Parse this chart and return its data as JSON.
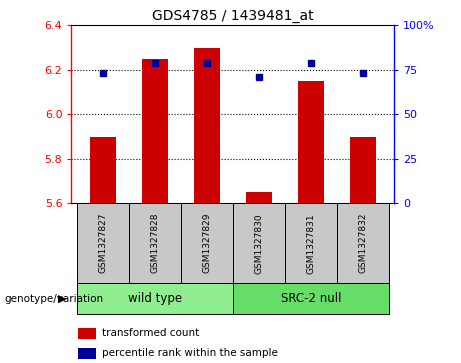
{
  "title": "GDS4785 / 1439481_at",
  "samples": [
    "GSM1327827",
    "GSM1327828",
    "GSM1327829",
    "GSM1327830",
    "GSM1327831",
    "GSM1327832"
  ],
  "red_values": [
    5.9,
    6.25,
    6.3,
    5.65,
    6.15,
    5.9
  ],
  "blue_values": [
    73,
    79,
    79,
    71,
    79,
    73
  ],
  "ylim_left": [
    5.6,
    6.4
  ],
  "ylim_right": [
    0,
    100
  ],
  "yticks_left": [
    5.6,
    5.8,
    6.0,
    6.2,
    6.4
  ],
  "yticks_right": [
    0,
    25,
    50,
    75,
    100
  ],
  "ytick_labels_right": [
    "0",
    "25",
    "50",
    "75",
    "100%"
  ],
  "groups": [
    {
      "label": "wild type",
      "span": [
        0,
        3
      ],
      "color": "#90EE90"
    },
    {
      "label": "SRC-2 null",
      "span": [
        3,
        6
      ],
      "color": "#66DD66"
    }
  ],
  "group_label": "genotype/variation",
  "bar_color": "#CC0000",
  "dot_color": "#000099",
  "bar_bottom": 5.6,
  "cell_bg": "#C8C8C8",
  "legend_items": [
    {
      "label": "transformed count",
      "color": "#CC0000"
    },
    {
      "label": "percentile rank within the sample",
      "color": "#000099"
    }
  ]
}
